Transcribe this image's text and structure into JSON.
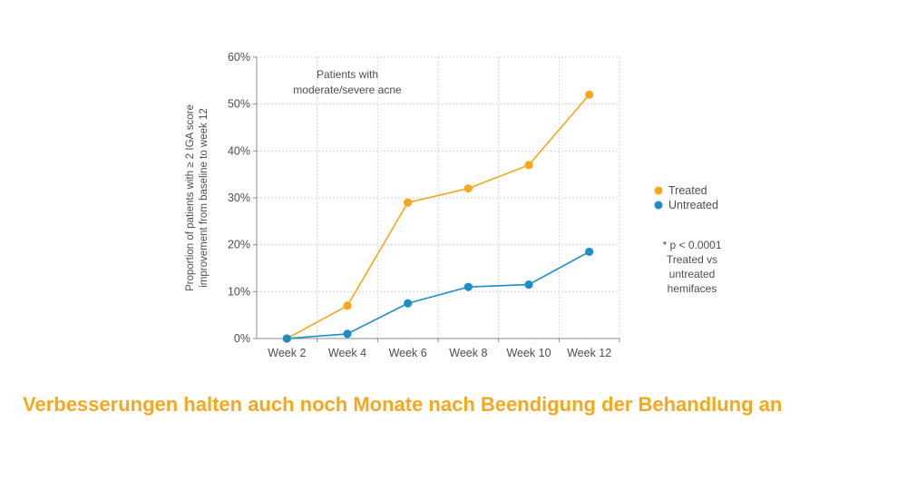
{
  "chart_data": {
    "type": "line",
    "categories": [
      "Week 2",
      "Week 4",
      "Week 6",
      "Week 8",
      "Week 10",
      "Week 12"
    ],
    "series": [
      {
        "name": "Treated",
        "color": "#F5A81E",
        "values": [
          0,
          7,
          29,
          32,
          37,
          52
        ]
      },
      {
        "name": "Untreated",
        "color": "#1B8DC9",
        "values": [
          0,
          1,
          7.5,
          11,
          11.5,
          18.5
        ]
      }
    ],
    "ylim": [
      0,
      60
    ],
    "ystep": 10,
    "ytick_labels": [
      "0%",
      "10%",
      "20%",
      "30%",
      "40%",
      "50%",
      "60%"
    ],
    "ylabel_lines": [
      "Proportion of patients with ≥ 2 IGA score",
      "improvement from baseline to week 12"
    ],
    "annotation": [
      "Patients with",
      "moderate/severe acne"
    ],
    "footnote": [
      "* p < 0.0001",
      "Treated vs",
      "untreated",
      "hemifaces"
    ],
    "legend_position": "right",
    "grid": true
  },
  "headline": "Verbesserungen halten auch noch Monate nach Beendigung der Behandlung an",
  "colors": {
    "headline": "#F5A81E",
    "text": "#4D4D4D",
    "grid": "#C4C4C4",
    "axis": "#8C8C8C"
  }
}
